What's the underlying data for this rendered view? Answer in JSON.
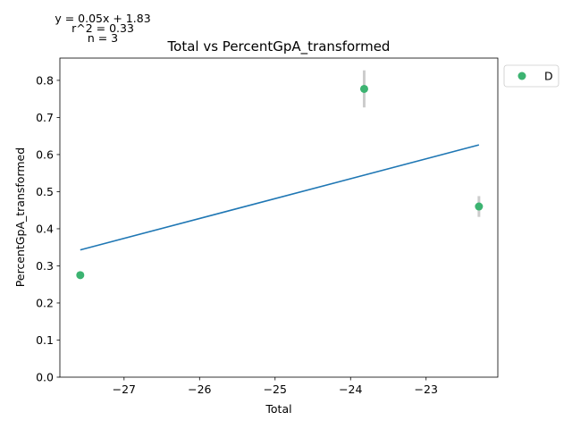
{
  "chart_data": {
    "type": "scatter",
    "title": "Total vs PercentGpA_transformed",
    "xlabel": "Total",
    "ylabel": "PercentGpA_transformed",
    "xlim": [
      -27.85,
      -22.05
    ],
    "ylim": [
      0.0,
      0.86
    ],
    "xticks": [
      -27,
      -26,
      -25,
      -24,
      -23
    ],
    "xtick_labels": [
      "−27",
      "−26",
      "−25",
      "−24",
      "−23"
    ],
    "yticks": [
      0.0,
      0.1,
      0.2,
      0.3,
      0.4,
      0.5,
      0.6,
      0.7,
      0.8
    ],
    "ytick_labels": [
      "0.0",
      "0.1",
      "0.2",
      "0.3",
      "0.4",
      "0.5",
      "0.6",
      "0.7",
      "0.8"
    ],
    "grid": false,
    "legend": {
      "placement": "outside-top-right",
      "entries": [
        "D"
      ]
    },
    "series": [
      {
        "name": "D",
        "color": "#3cb371",
        "points": [
          {
            "x": -27.58,
            "y": 0.275,
            "err": 0.0
          },
          {
            "x": -23.82,
            "y": 0.777,
            "err": 0.05
          },
          {
            "x": -22.3,
            "y": 0.46,
            "err": 0.028
          }
        ]
      }
    ],
    "error_bar_color": "#cccccc",
    "fit_line": {
      "color": "#1f77b4",
      "x": [
        -27.58,
        -22.3
      ],
      "y": [
        0.343,
        0.626
      ]
    },
    "annotations": {
      "equation": "y = 0.05x + 1.83",
      "r_squared": "r^2 = 0.33",
      "n": "n = 3"
    }
  }
}
